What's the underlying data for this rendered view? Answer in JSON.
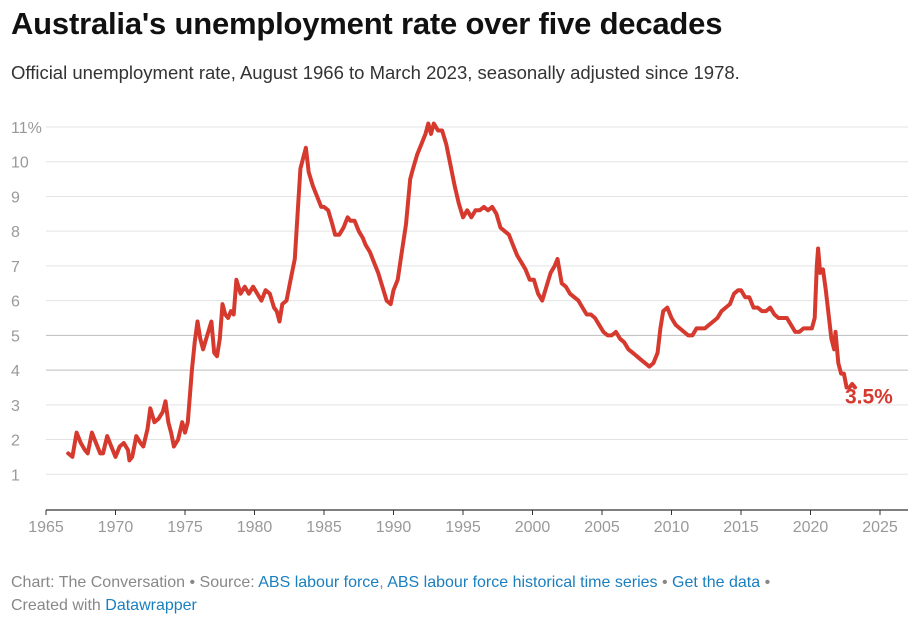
{
  "header": {
    "title": "Australia's unemployment rate over five decades",
    "subtitle": "Official unemployment rate, August 1966 to March 2023, seasonally adjusted since 1978."
  },
  "footer": {
    "chart_prefix": "Chart: The Conversation",
    "source_prefix": "Source:",
    "source_link_1": "ABS labour force",
    "source_link_2": "ABS labour force historical time series",
    "get_data": "Get the data",
    "created_prefix": "Created with",
    "created_link": "Datawrapper",
    "separator": "•"
  },
  "colors": {
    "line": "#d63a2f",
    "link": "#1a7fbf"
  },
  "chart_data": {
    "type": "line",
    "title": "Australia's unemployment rate over five decades",
    "xlabel": "",
    "ylabel": "",
    "xlim": [
      1965,
      2026.5
    ],
    "ylim": [
      0,
      11.3
    ],
    "x_ticks": [
      "1965",
      "1970",
      "1975",
      "1980",
      "1985",
      "1990",
      "1995",
      "2000",
      "2005",
      "2010",
      "2015",
      "2020",
      "2025"
    ],
    "y_ticks": [
      {
        "value": 1,
        "label": "1"
      },
      {
        "value": 2,
        "label": "2"
      },
      {
        "value": 3,
        "label": "3"
      },
      {
        "value": 4,
        "label": "4"
      },
      {
        "value": 5,
        "label": "5"
      },
      {
        "value": 6,
        "label": "6"
      },
      {
        "value": 7,
        "label": "7"
      },
      {
        "value": 8,
        "label": "8"
      },
      {
        "value": 9,
        "label": "9"
      },
      {
        "value": 10,
        "label": "10"
      },
      {
        "value": 11,
        "label": "11%"
      }
    ],
    "grid": true,
    "end_label": "3.5%",
    "series": [
      {
        "name": "",
        "color": "#d63a2f",
        "points": [
          [
            1966.6,
            1.6
          ],
          [
            1966.9,
            1.5
          ],
          [
            1967.2,
            2.2
          ],
          [
            1967.5,
            1.9
          ],
          [
            1967.8,
            1.7
          ],
          [
            1968.0,
            1.6
          ],
          [
            1968.3,
            2.2
          ],
          [
            1968.6,
            1.9
          ],
          [
            1968.9,
            1.6
          ],
          [
            1969.1,
            1.6
          ],
          [
            1969.4,
            2.1
          ],
          [
            1969.7,
            1.8
          ],
          [
            1970.0,
            1.5
          ],
          [
            1970.3,
            1.8
          ],
          [
            1970.6,
            1.9
          ],
          [
            1970.9,
            1.7
          ],
          [
            1971.0,
            1.4
          ],
          [
            1971.2,
            1.5
          ],
          [
            1971.5,
            2.1
          ],
          [
            1971.8,
            1.9
          ],
          [
            1972.0,
            1.8
          ],
          [
            1972.3,
            2.3
          ],
          [
            1972.5,
            2.9
          ],
          [
            1972.8,
            2.5
          ],
          [
            1973.1,
            2.6
          ],
          [
            1973.4,
            2.8
          ],
          [
            1973.6,
            3.1
          ],
          [
            1973.8,
            2.5
          ],
          [
            1974.0,
            2.2
          ],
          [
            1974.2,
            1.8
          ],
          [
            1974.5,
            2.0
          ],
          [
            1974.8,
            2.5
          ],
          [
            1975.0,
            2.2
          ],
          [
            1975.2,
            2.5
          ],
          [
            1975.5,
            4.0
          ],
          [
            1975.7,
            4.8
          ],
          [
            1975.9,
            5.4
          ],
          [
            1976.1,
            4.9
          ],
          [
            1976.3,
            4.6
          ],
          [
            1976.6,
            5.0
          ],
          [
            1976.9,
            5.4
          ],
          [
            1977.1,
            4.5
          ],
          [
            1977.3,
            4.4
          ],
          [
            1977.5,
            4.9
          ],
          [
            1977.7,
            5.9
          ],
          [
            1977.9,
            5.6
          ],
          [
            1978.1,
            5.5
          ],
          [
            1978.3,
            5.7
          ],
          [
            1978.5,
            5.6
          ],
          [
            1978.7,
            6.6
          ],
          [
            1979.0,
            6.2
          ],
          [
            1979.3,
            6.4
          ],
          [
            1979.6,
            6.2
          ],
          [
            1979.9,
            6.4
          ],
          [
            1980.2,
            6.2
          ],
          [
            1980.5,
            6.0
          ],
          [
            1980.8,
            6.3
          ],
          [
            1981.1,
            6.2
          ],
          [
            1981.4,
            5.8
          ],
          [
            1981.6,
            5.7
          ],
          [
            1981.8,
            5.4
          ],
          [
            1982.0,
            5.9
          ],
          [
            1982.3,
            6.0
          ],
          [
            1982.6,
            6.6
          ],
          [
            1982.9,
            7.2
          ],
          [
            1983.1,
            8.5
          ],
          [
            1983.3,
            9.8
          ],
          [
            1983.5,
            10.1
          ],
          [
            1983.7,
            10.4
          ],
          [
            1983.9,
            9.7
          ],
          [
            1984.2,
            9.3
          ],
          [
            1984.5,
            9.0
          ],
          [
            1984.8,
            8.7
          ],
          [
            1985.0,
            8.7
          ],
          [
            1985.3,
            8.6
          ],
          [
            1985.6,
            8.2
          ],
          [
            1985.8,
            7.9
          ],
          [
            1986.1,
            7.9
          ],
          [
            1986.4,
            8.1
          ],
          [
            1986.7,
            8.4
          ],
          [
            1986.9,
            8.3
          ],
          [
            1987.2,
            8.3
          ],
          [
            1987.5,
            8.0
          ],
          [
            1987.8,
            7.8
          ],
          [
            1988.0,
            7.6
          ],
          [
            1988.3,
            7.4
          ],
          [
            1988.6,
            7.1
          ],
          [
            1988.9,
            6.8
          ],
          [
            1989.2,
            6.4
          ],
          [
            1989.5,
            6.0
          ],
          [
            1989.8,
            5.9
          ],
          [
            1990.0,
            6.3
          ],
          [
            1990.3,
            6.6
          ],
          [
            1990.6,
            7.4
          ],
          [
            1990.9,
            8.2
          ],
          [
            1991.2,
            9.5
          ],
          [
            1991.4,
            9.8
          ],
          [
            1991.7,
            10.2
          ],
          [
            1992.0,
            10.5
          ],
          [
            1992.3,
            10.8
          ],
          [
            1992.5,
            11.1
          ],
          [
            1992.7,
            10.8
          ],
          [
            1992.9,
            11.1
          ],
          [
            1993.2,
            10.9
          ],
          [
            1993.5,
            10.9
          ],
          [
            1993.8,
            10.5
          ],
          [
            1994.1,
            9.9
          ],
          [
            1994.4,
            9.3
          ],
          [
            1994.7,
            8.8
          ],
          [
            1995.0,
            8.4
          ],
          [
            1995.3,
            8.6
          ],
          [
            1995.6,
            8.4
          ],
          [
            1995.9,
            8.6
          ],
          [
            1996.2,
            8.6
          ],
          [
            1996.5,
            8.7
          ],
          [
            1996.8,
            8.6
          ],
          [
            1997.1,
            8.7
          ],
          [
            1997.4,
            8.5
          ],
          [
            1997.7,
            8.1
          ],
          [
            1998.0,
            8.0
          ],
          [
            1998.3,
            7.9
          ],
          [
            1998.6,
            7.6
          ],
          [
            1998.9,
            7.3
          ],
          [
            1999.2,
            7.1
          ],
          [
            1999.5,
            6.9
          ],
          [
            1999.8,
            6.6
          ],
          [
            2000.1,
            6.6
          ],
          [
            2000.4,
            6.2
          ],
          [
            2000.7,
            6.0
          ],
          [
            2001.0,
            6.4
          ],
          [
            2001.3,
            6.8
          ],
          [
            2001.6,
            7.0
          ],
          [
            2001.8,
            7.2
          ],
          [
            2002.1,
            6.5
          ],
          [
            2002.4,
            6.4
          ],
          [
            2002.7,
            6.2
          ],
          [
            2003.0,
            6.1
          ],
          [
            2003.3,
            6.0
          ],
          [
            2003.6,
            5.8
          ],
          [
            2003.9,
            5.6
          ],
          [
            2004.2,
            5.6
          ],
          [
            2004.5,
            5.5
          ],
          [
            2004.8,
            5.3
          ],
          [
            2005.1,
            5.1
          ],
          [
            2005.4,
            5.0
          ],
          [
            2005.7,
            5.0
          ],
          [
            2006.0,
            5.1
          ],
          [
            2006.3,
            4.9
          ],
          [
            2006.6,
            4.8
          ],
          [
            2006.9,
            4.6
          ],
          [
            2007.2,
            4.5
          ],
          [
            2007.5,
            4.4
          ],
          [
            2007.8,
            4.3
          ],
          [
            2008.1,
            4.2
          ],
          [
            2008.4,
            4.1
          ],
          [
            2008.7,
            4.2
          ],
          [
            2009.0,
            4.5
          ],
          [
            2009.2,
            5.2
          ],
          [
            2009.4,
            5.7
          ],
          [
            2009.7,
            5.8
          ],
          [
            2010.0,
            5.5
          ],
          [
            2010.3,
            5.3
          ],
          [
            2010.6,
            5.2
          ],
          [
            2010.9,
            5.1
          ],
          [
            2011.2,
            5.0
          ],
          [
            2011.5,
            5.0
          ],
          [
            2011.8,
            5.2
          ],
          [
            2012.1,
            5.2
          ],
          [
            2012.4,
            5.2
          ],
          [
            2012.7,
            5.3
          ],
          [
            2013.0,
            5.4
          ],
          [
            2013.3,
            5.5
          ],
          [
            2013.6,
            5.7
          ],
          [
            2013.9,
            5.8
          ],
          [
            2014.2,
            5.9
          ],
          [
            2014.5,
            6.2
          ],
          [
            2014.8,
            6.3
          ],
          [
            2015.0,
            6.3
          ],
          [
            2015.3,
            6.1
          ],
          [
            2015.6,
            6.1
          ],
          [
            2015.9,
            5.8
          ],
          [
            2016.2,
            5.8
          ],
          [
            2016.5,
            5.7
          ],
          [
            2016.8,
            5.7
          ],
          [
            2017.1,
            5.8
          ],
          [
            2017.4,
            5.6
          ],
          [
            2017.7,
            5.5
          ],
          [
            2018.0,
            5.5
          ],
          [
            2018.3,
            5.5
          ],
          [
            2018.6,
            5.3
          ],
          [
            2018.9,
            5.1
          ],
          [
            2019.2,
            5.1
          ],
          [
            2019.5,
            5.2
          ],
          [
            2019.8,
            5.2
          ],
          [
            2020.1,
            5.2
          ],
          [
            2020.3,
            5.5
          ],
          [
            2020.45,
            7.0
          ],
          [
            2020.55,
            7.5
          ],
          [
            2020.7,
            6.8
          ],
          [
            2020.9,
            6.9
          ],
          [
            2021.1,
            6.3
          ],
          [
            2021.3,
            5.6
          ],
          [
            2021.5,
            4.9
          ],
          [
            2021.7,
            4.6
          ],
          [
            2021.8,
            5.1
          ],
          [
            2022.0,
            4.2
          ],
          [
            2022.2,
            3.9
          ],
          [
            2022.4,
            3.9
          ],
          [
            2022.6,
            3.5
          ],
          [
            2022.8,
            3.5
          ],
          [
            2023.0,
            3.6
          ],
          [
            2023.2,
            3.5
          ]
        ]
      }
    ]
  }
}
